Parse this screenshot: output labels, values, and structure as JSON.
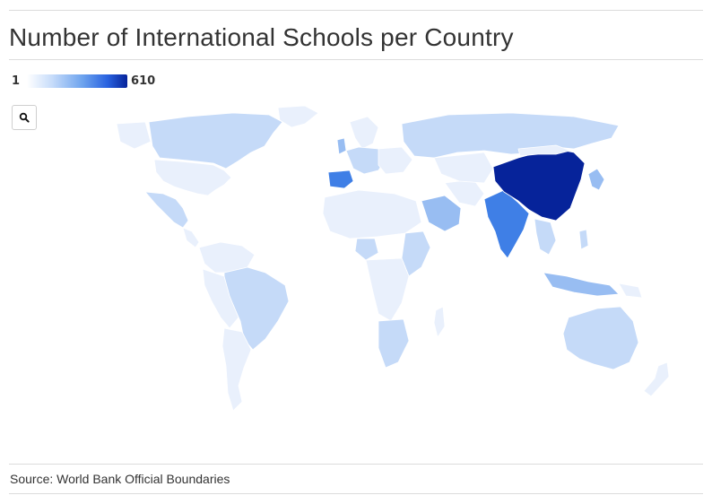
{
  "title": "Number of International Schools per Country",
  "legend": {
    "min_label": "1",
    "max_label": "610",
    "color_low": "#ffffff",
    "color_high": "#06239a"
  },
  "controls": {
    "zoom_icon": "search-icon"
  },
  "source": "Source: World Bank Official Boundaries",
  "colors": {
    "land_base": "#e9f0fc",
    "light": "#c5daf8",
    "medium": "#98bdf2",
    "strong": "#3f7fe6",
    "top": "#06239a"
  },
  "regions": [
    {
      "name": "China",
      "level": "top"
    },
    {
      "name": "India",
      "level": "strong"
    },
    {
      "name": "Spain",
      "level": "strong"
    },
    {
      "name": "Canada",
      "level": "light"
    },
    {
      "name": "Russia",
      "level": "light"
    },
    {
      "name": "Brazil",
      "level": "light"
    },
    {
      "name": "Australia",
      "level": "light"
    },
    {
      "name": "Saudi Arabia",
      "level": "medium"
    },
    {
      "name": "United States",
      "level": "base"
    }
  ]
}
